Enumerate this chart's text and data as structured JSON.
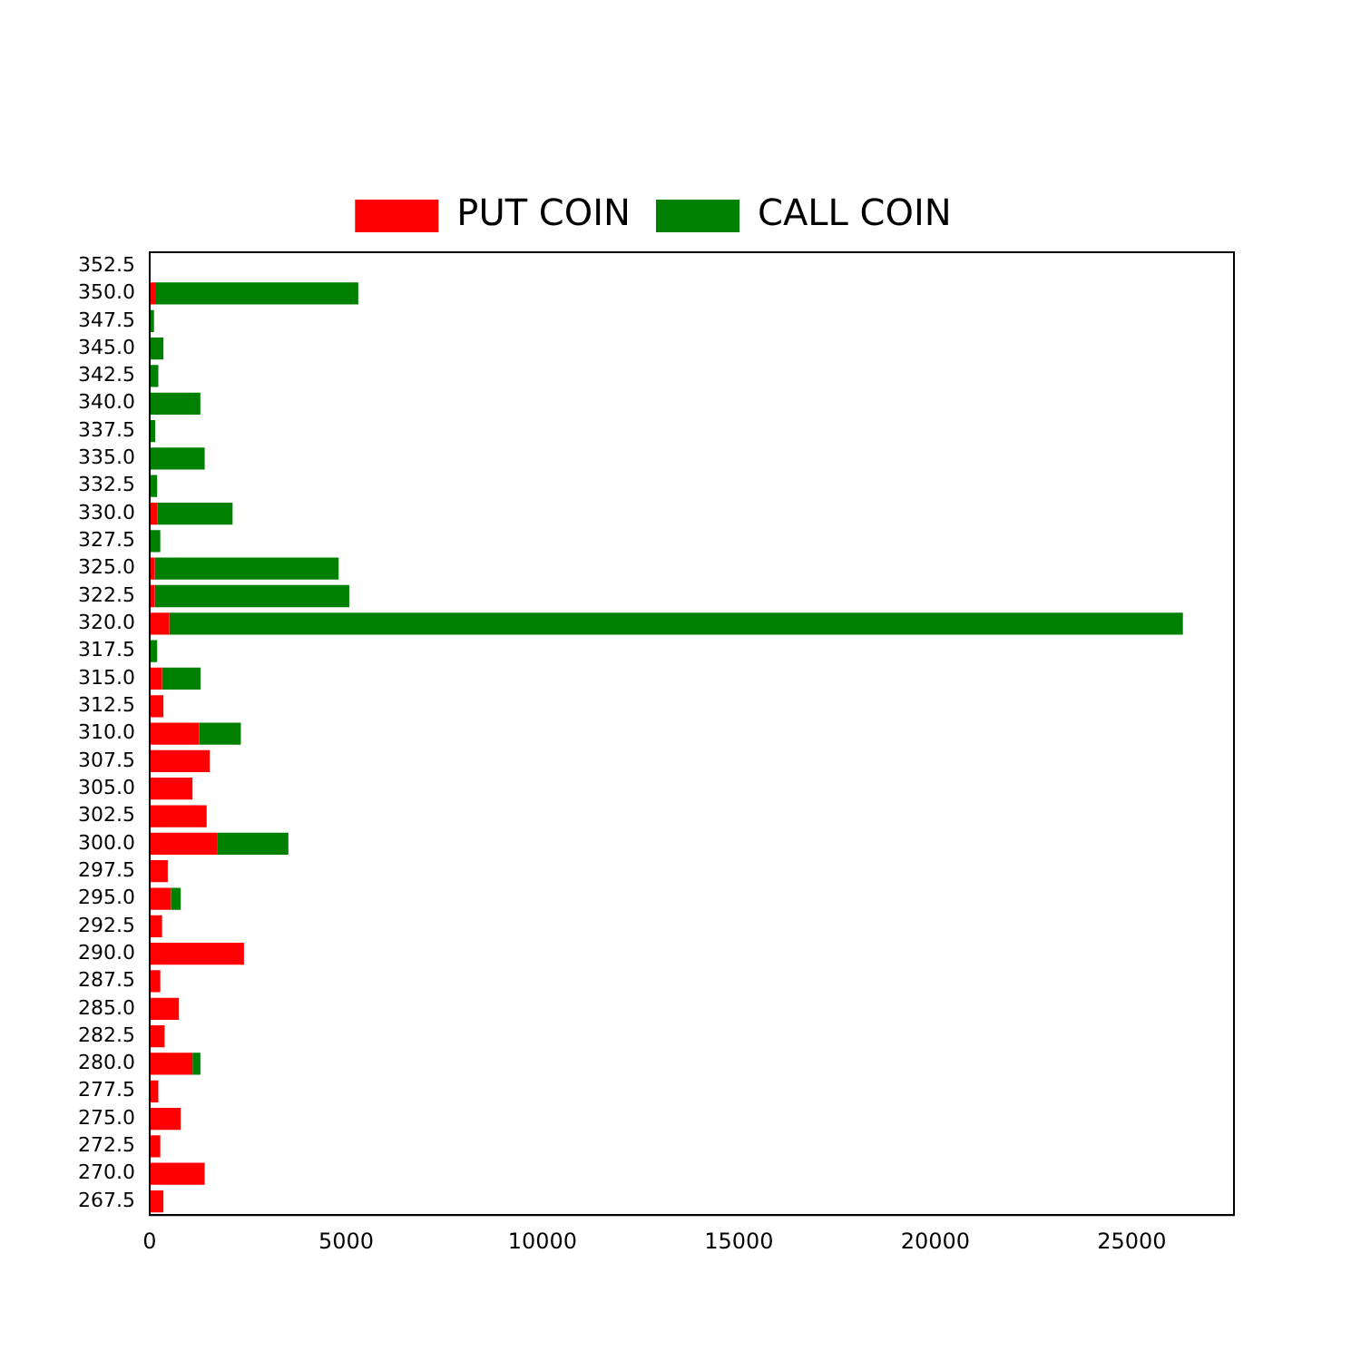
{
  "chart_data": {
    "type": "bar",
    "orientation": "horizontal",
    "stacked": true,
    "categories": [
      "352.5",
      "350.0",
      "347.5",
      "345.0",
      "342.5",
      "340.0",
      "337.5",
      "335.0",
      "332.5",
      "330.0",
      "327.5",
      "325.0",
      "322.5",
      "320.0",
      "317.5",
      "315.0",
      "312.5",
      "310.0",
      "307.5",
      "305.0",
      "302.5",
      "300.0",
      "297.5",
      "295.0",
      "292.5",
      "290.0",
      "287.5",
      "285.0",
      "282.5",
      "280.0",
      "277.5",
      "275.0",
      "272.5",
      "270.0",
      "267.5"
    ],
    "series": [
      {
        "name": "PUT COIN",
        "color": "#ff0000",
        "values": [
          0,
          140,
          0,
          0,
          0,
          0,
          0,
          0,
          0,
          200,
          0,
          130,
          130,
          500,
          0,
          315,
          350,
          1260,
          1530,
          1090,
          1450,
          1730,
          460,
          540,
          315,
          2400,
          270,
          740,
          380,
          1090,
          220,
          790,
          270,
          1400,
          350
        ]
      },
      {
        "name": "CALL COIN",
        "color": "#008000",
        "values": [
          0,
          5170,
          110,
          350,
          220,
          1290,
          140,
          1400,
          190,
          1910,
          270,
          4680,
          4950,
          25800,
          190,
          980,
          0,
          1060,
          0,
          0,
          0,
          1800,
          0,
          250,
          0,
          0,
          0,
          0,
          0,
          200,
          0,
          0,
          0,
          0,
          0
        ]
      }
    ],
    "xlim": [
      0,
      27600
    ],
    "xticks": [
      0,
      5000,
      10000,
      15000,
      20000,
      25000
    ],
    "grid": false,
    "legend": "top"
  }
}
